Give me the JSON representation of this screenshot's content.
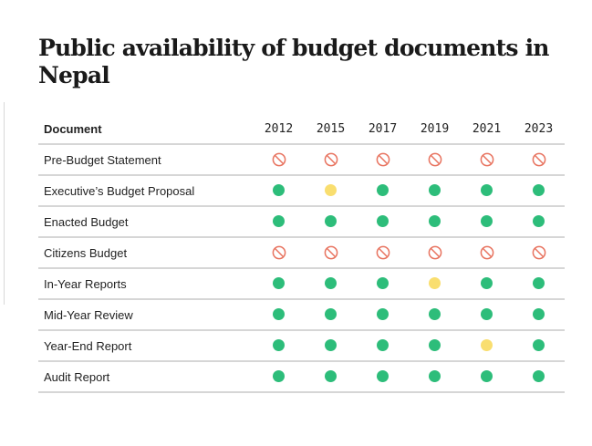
{
  "title": "Public availability of budget documents in Nepal",
  "table": {
    "header_document": "Document",
    "years": [
      "2012",
      "2015",
      "2017",
      "2019",
      "2021",
      "2023"
    ],
    "rows": [
      {
        "document": "Pre-Budget Statement",
        "status": [
          "unavailable",
          "unavailable",
          "unavailable",
          "unavailable",
          "unavailable",
          "unavailable"
        ]
      },
      {
        "document": "Executive’s Budget Proposal",
        "status": [
          "published",
          "partial",
          "published",
          "published",
          "published",
          "published"
        ]
      },
      {
        "document": "Enacted Budget",
        "status": [
          "published",
          "published",
          "published",
          "published",
          "published",
          "published"
        ]
      },
      {
        "document": "Citizens Budget",
        "status": [
          "unavailable",
          "unavailable",
          "unavailable",
          "unavailable",
          "unavailable",
          "unavailable"
        ]
      },
      {
        "document": "In-Year Reports",
        "status": [
          "published",
          "published",
          "published",
          "partial",
          "published",
          "published"
        ]
      },
      {
        "document": "Mid-Year Review",
        "status": [
          "published",
          "published",
          "published",
          "published",
          "published",
          "published"
        ]
      },
      {
        "document": "Year-End Report",
        "status": [
          "published",
          "published",
          "published",
          "published",
          "partial",
          "published"
        ]
      },
      {
        "document": "Audit Report",
        "status": [
          "published",
          "published",
          "published",
          "published",
          "published",
          "published"
        ]
      }
    ]
  },
  "colors": {
    "published": "#2dbd7a",
    "partial": "#f9de6f",
    "unavailable": "#e8735f",
    "rule": "#d6d6d6"
  },
  "icons": {
    "published": "filled-circle-icon",
    "partial": "filled-circle-icon",
    "unavailable": "prohibited-icon"
  }
}
